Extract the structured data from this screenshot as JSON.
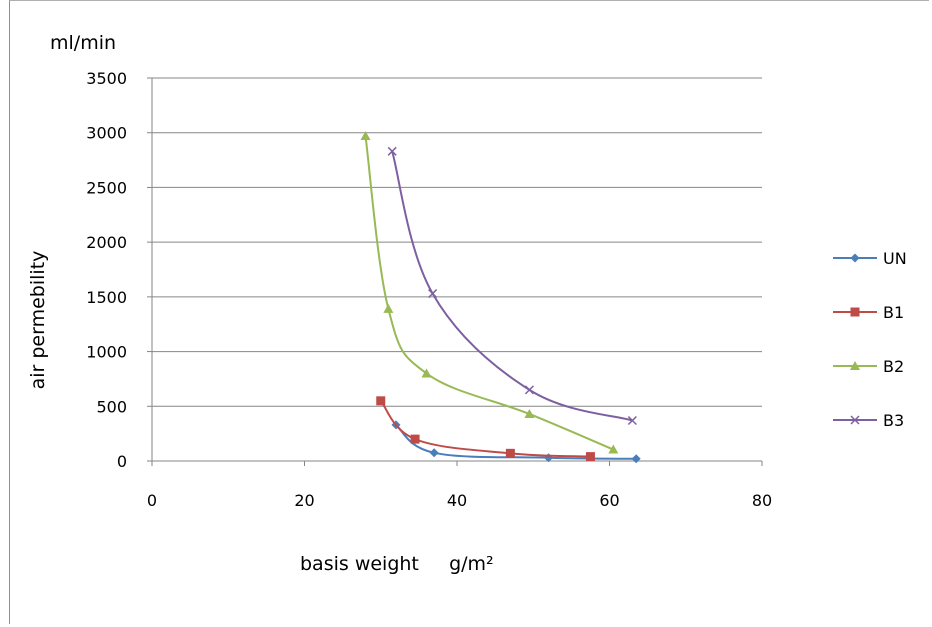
{
  "chart_data": {
    "type": "line",
    "y_unit_label": "ml/min",
    "ylabel": "air permebility",
    "xlabel": "basis weight     g/m²",
    "xlim": [
      0,
      80
    ],
    "ylim": [
      0,
      3500
    ],
    "x_ticks": [
      0,
      20,
      40,
      60,
      80
    ],
    "y_ticks": [
      0,
      500,
      1000,
      1500,
      2000,
      2500,
      3000,
      3500
    ],
    "grid": "horizontal",
    "legend_position": "right",
    "series": [
      {
        "name": "UN",
        "color": "#4a7ebb",
        "marker": "diamond",
        "points": [
          [
            32,
            330
          ],
          [
            37,
            75
          ],
          [
            52,
            30
          ],
          [
            63.5,
            20
          ]
        ]
      },
      {
        "name": "B1",
        "color": "#be4b48",
        "marker": "square",
        "points": [
          [
            30,
            550
          ],
          [
            34.5,
            200
          ],
          [
            47,
            70
          ],
          [
            57.5,
            40
          ]
        ]
      },
      {
        "name": "B2",
        "color": "#98b954",
        "marker": "triangle",
        "points": [
          [
            28,
            2970
          ],
          [
            31,
            1390
          ],
          [
            36,
            800
          ],
          [
            49.5,
            430
          ],
          [
            60.5,
            105
          ]
        ]
      },
      {
        "name": "B3",
        "color": "#7d60a0",
        "marker": "x",
        "points": [
          [
            31.5,
            2830
          ],
          [
            36.8,
            1530
          ],
          [
            49.5,
            650
          ],
          [
            63,
            370
          ]
        ]
      }
    ]
  }
}
